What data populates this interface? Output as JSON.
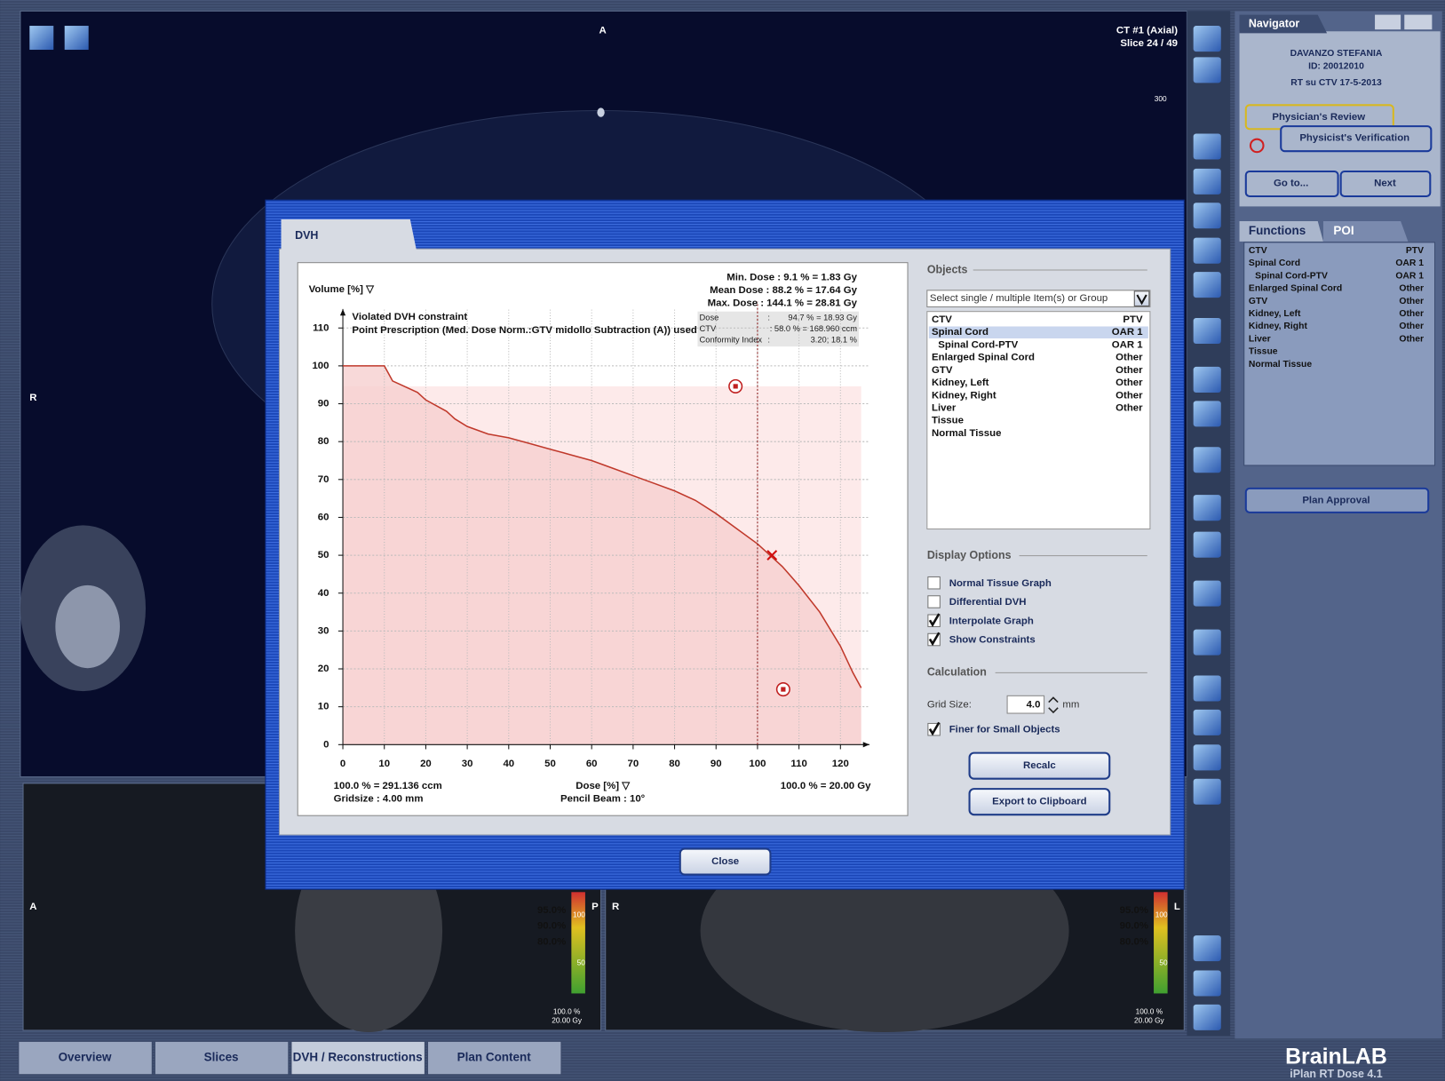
{
  "viewer": {
    "top": "A",
    "left": "R",
    "series": "CT #1 (Axial)",
    "slice": "Slice 24 / 49",
    "ruler": "300"
  },
  "views": [
    {
      "left": "A",
      "right": "P",
      "levels": [
        {
          "label": "95.0%",
          "color": "#e08a2a"
        },
        {
          "label": "90.0%",
          "color": "#d8c82a"
        },
        {
          "label": "80.0%",
          "color": "#8ac83a"
        }
      ],
      "scale": [
        "100",
        "50"
      ],
      "footer": [
        "100.0 %",
        "20.00 Gy"
      ]
    },
    {
      "left": "R",
      "right": "L",
      "levels": [
        {
          "label": "95.0%",
          "color": "#e08a2a"
        },
        {
          "label": "90.0%",
          "color": "#d8c82a"
        },
        {
          "label": "80.0%",
          "color": "#8ac83a"
        }
      ],
      "scale": [
        "100",
        "50"
      ],
      "footer": [
        "100.0 %",
        "20.00 Gy"
      ]
    }
  ],
  "tabs": {
    "items": [
      "Overview",
      "Slices",
      "DVH / Reconstructions",
      "Plan Content"
    ],
    "active": 2
  },
  "navigator": {
    "title": "Navigator",
    "patient": "DAVANZO STEFANIA",
    "id": "ID: 20012010",
    "plan": "RT su CTV 17-5-2013",
    "review": "Physician's Review",
    "verification": "Physicist's Verification",
    "goto": "Go to...",
    "next": "Next"
  },
  "functions": {
    "tabs": [
      "Functions",
      "POI"
    ],
    "approval": "Plan Approval",
    "items": [
      {
        "name": "CTV",
        "group": "PTV",
        "color": "#8fd05a"
      },
      {
        "name": "Spinal Cord",
        "group": "OAR 1",
        "color": "#1c34c8"
      },
      {
        "name": "Spinal Cord-PTV",
        "group": "OAR 1",
        "color": "#1c34c8",
        "level": 1
      },
      {
        "name": "Enlarged Spinal Cord",
        "group": "Other",
        "color": "#ffffff"
      },
      {
        "name": "GTV",
        "group": "Other",
        "color": "#ffffff"
      },
      {
        "name": "Kidney, Left",
        "group": "Other",
        "color": "#ffffff"
      },
      {
        "name": "Kidney, Right",
        "group": "Other",
        "color": "#ffffff"
      },
      {
        "name": "Liver",
        "group": "Other",
        "color": "#ffffff"
      },
      {
        "name": "Tissue",
        "color": "#ffffff"
      },
      {
        "name": "Normal Tissue",
        "color": "#ffffff"
      }
    ]
  },
  "brand": {
    "logo": "BrainLAB",
    "product": "iPlan RT Dose 4.1"
  },
  "dialog": {
    "tab": "DVH",
    "chart": {
      "type": "line",
      "y_label": "Volume [%] ▽",
      "x_label": "Dose [%] ▽",
      "stats": [
        "Min. Dose : 9.1 % = 1.83 Gy",
        "Mean Dose : 88.2 % = 17.64 Gy",
        "Max. Dose : 144.1 % = 28.81 Gy"
      ],
      "notes": [
        "Violated DVH constraint",
        "Point Prescription (Med. Dose Norm.:GTV midollo Subtraction (A)) used"
      ],
      "info": [
        [
          "Dose",
          ":",
          "94.7 % = 18.93 Gy"
        ],
        [
          "CTV",
          "",
          ": 58.0 % = 168.960 ccm"
        ],
        [
          "Conformity Index",
          ":",
          "3.20; 18.1 %"
        ]
      ],
      "footer_left": [
        "100.0 % = 291.136 ccm",
        "Gridsize :  4.00 mm"
      ],
      "footer_center": "Pencil Beam : 10°",
      "footer_right": "100.0 % = 20.00 Gy",
      "x": [
        0,
        10,
        11,
        12,
        14,
        18,
        20,
        25,
        27,
        30,
        35,
        40,
        45,
        50,
        55,
        60,
        65,
        70,
        75,
        80,
        85,
        90,
        95,
        100,
        103,
        106,
        110,
        115,
        120,
        123,
        125
      ],
      "values": [
        100,
        100,
        98,
        96,
        95,
        93,
        91,
        88,
        86,
        84,
        82,
        81,
        79.5,
        78,
        76.5,
        75,
        73,
        71,
        69,
        67,
        64.5,
        61,
        57,
        53,
        50,
        47,
        42,
        35,
        26,
        19,
        15
      ],
      "color": "#c0392b",
      "fill_color": "#f6cfcf",
      "region_color": "#fdeaea",
      "xlim": [
        0,
        127
      ],
      "ylim": [
        0,
        115
      ],
      "xticks": [
        0,
        10,
        20,
        30,
        40,
        50,
        60,
        70,
        80,
        90,
        100,
        110,
        120
      ],
      "yticks": [
        0,
        10,
        20,
        30,
        40,
        50,
        60,
        70,
        80,
        90,
        100,
        110
      ],
      "grid": true,
      "constraints": {
        "x": [
          94.7,
          106.2
        ],
        "y": [
          94.6,
          14.6
        ]
      },
      "reference_dose": 100,
      "evaluation_point": {
        "x": 103.5,
        "y": 50
      }
    },
    "objects": {
      "title": "Objects",
      "select": "Select single / multiple Item(s) or Group",
      "selected": 1,
      "items": [
        {
          "name": "CTV",
          "group": "PTV",
          "color": "#2e9e2e"
        },
        {
          "name": "Spinal Cord",
          "group": "OAR 1",
          "color": "#1030c0"
        },
        {
          "name": "Spinal Cord-PTV",
          "group": "OAR 1",
          "color": "#1030c0",
          "level": 1
        },
        {
          "name": "Enlarged Spinal Cord",
          "group": "Other",
          "color": "#111111"
        },
        {
          "name": "GTV",
          "group": "Other",
          "color": "#111111"
        },
        {
          "name": "Kidney, Left",
          "group": "Other",
          "color": "#111111"
        },
        {
          "name": "Kidney, Right",
          "group": "Other",
          "color": "#111111"
        },
        {
          "name": "Liver",
          "group": "Other",
          "color": "#111111"
        },
        {
          "name": "Tissue",
          "color": "#111111"
        },
        {
          "name": "Normal Tissue",
          "color": "#111111"
        }
      ]
    },
    "display": {
      "title": "Display Options",
      "options": [
        {
          "label": "Normal Tissue Graph",
          "checked": false
        },
        {
          "label": "Differential DVH",
          "checked": false
        },
        {
          "label": "Interpolate Graph",
          "checked": true
        },
        {
          "label": "Show Constraints",
          "checked": true
        }
      ]
    },
    "calculation": {
      "title": "Calculation",
      "grid_label": "Grid Size:",
      "grid_value": "4.0",
      "grid_unit": "mm",
      "finer": {
        "label": "Finer for Small Objects",
        "checked": true
      }
    },
    "buttons": {
      "recalc": "Recalc",
      "export": "Export to Clipboard",
      "close": "Close"
    }
  }
}
